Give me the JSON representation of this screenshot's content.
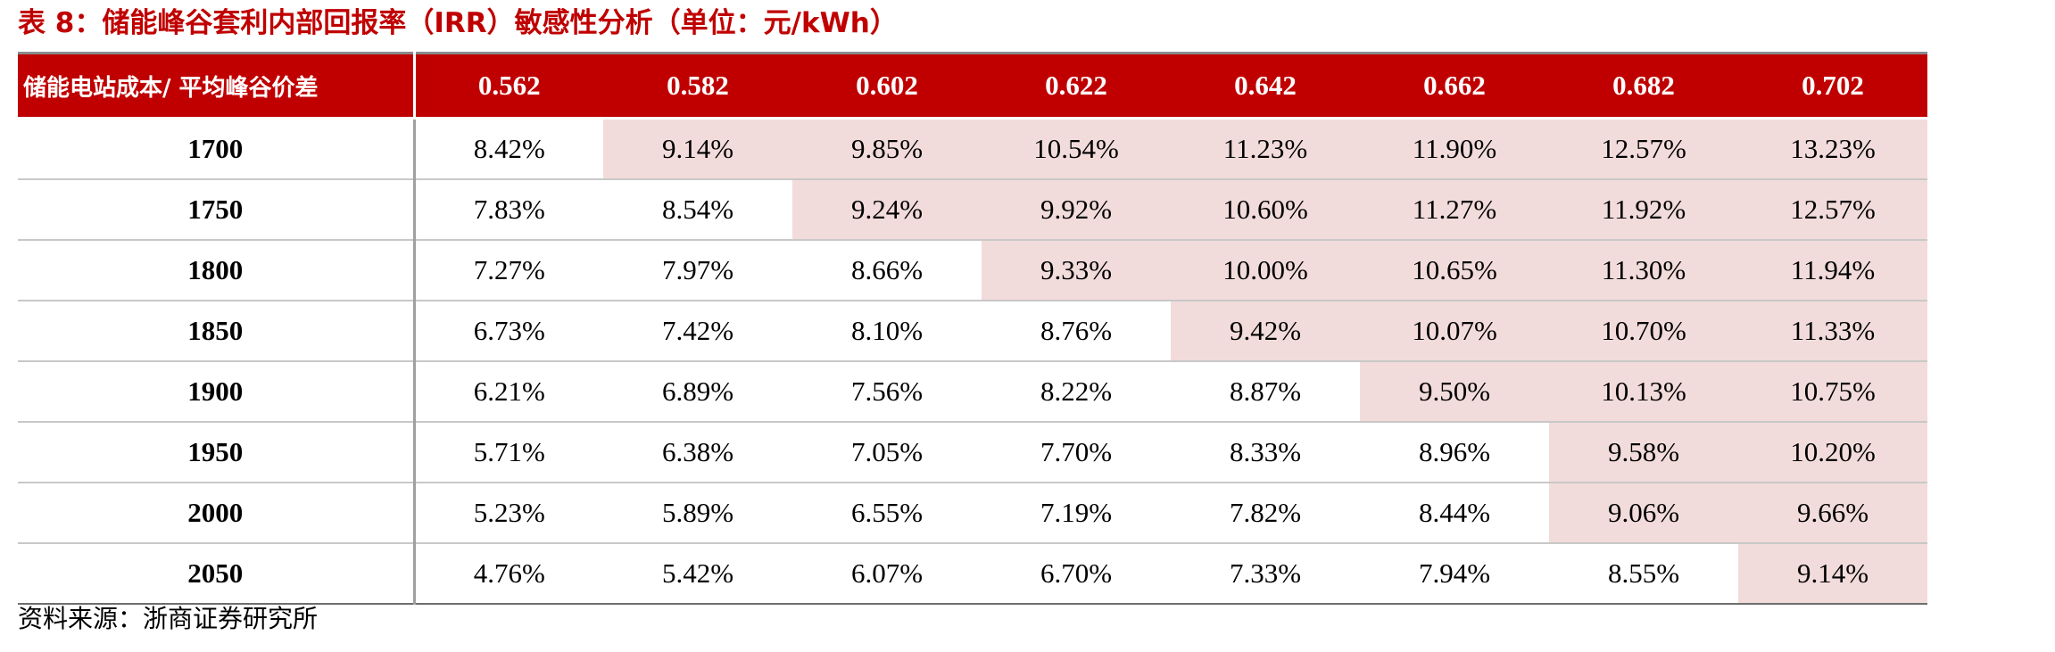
{
  "title": "表 8：储能峰谷套利内部回报率（IRR）敏感性分析（单位：元/kWh）",
  "table": {
    "corner_label": "储能电站成本/ 平均峰谷价差",
    "columns": [
      "0.562",
      "0.582",
      "0.602",
      "0.622",
      "0.642",
      "0.662",
      "0.682",
      "0.702"
    ],
    "rows": [
      {
        "label": "1700",
        "values": [
          "8.42%",
          "9.14%",
          "9.85%",
          "10.54%",
          "11.23%",
          "11.90%",
          "12.57%",
          "13.23%"
        ],
        "highlight_from": 1
      },
      {
        "label": "1750",
        "values": [
          "7.83%",
          "8.54%",
          "9.24%",
          "9.92%",
          "10.60%",
          "11.27%",
          "11.92%",
          "12.57%"
        ],
        "highlight_from": 2
      },
      {
        "label": "1800",
        "values": [
          "7.27%",
          "7.97%",
          "8.66%",
          "9.33%",
          "10.00%",
          "10.65%",
          "11.30%",
          "11.94%"
        ],
        "highlight_from": 3
      },
      {
        "label": "1850",
        "values": [
          "6.73%",
          "7.42%",
          "8.10%",
          "8.76%",
          "9.42%",
          "10.07%",
          "10.70%",
          "11.33%"
        ],
        "highlight_from": 4
      },
      {
        "label": "1900",
        "values": [
          "6.21%",
          "6.89%",
          "7.56%",
          "8.22%",
          "8.87%",
          "9.50%",
          "10.13%",
          "10.75%"
        ],
        "highlight_from": 5
      },
      {
        "label": "1950",
        "values": [
          "5.71%",
          "6.38%",
          "7.05%",
          "7.70%",
          "8.33%",
          "8.96%",
          "9.58%",
          "10.20%"
        ],
        "highlight_from": 6
      },
      {
        "label": "2000",
        "values": [
          "5.23%",
          "5.89%",
          "6.55%",
          "7.19%",
          "7.82%",
          "8.44%",
          "9.06%",
          "9.66%"
        ],
        "highlight_from": 6
      },
      {
        "label": "2050",
        "values": [
          "4.76%",
          "5.42%",
          "6.07%",
          "6.70%",
          "7.33%",
          "7.94%",
          "8.55%",
          "9.14%"
        ],
        "highlight_from": 7
      }
    ]
  },
  "source": "资料来源：浙商证券研究所",
  "colors": {
    "accent": "#c00000",
    "highlight": "#f2dcdb"
  }
}
